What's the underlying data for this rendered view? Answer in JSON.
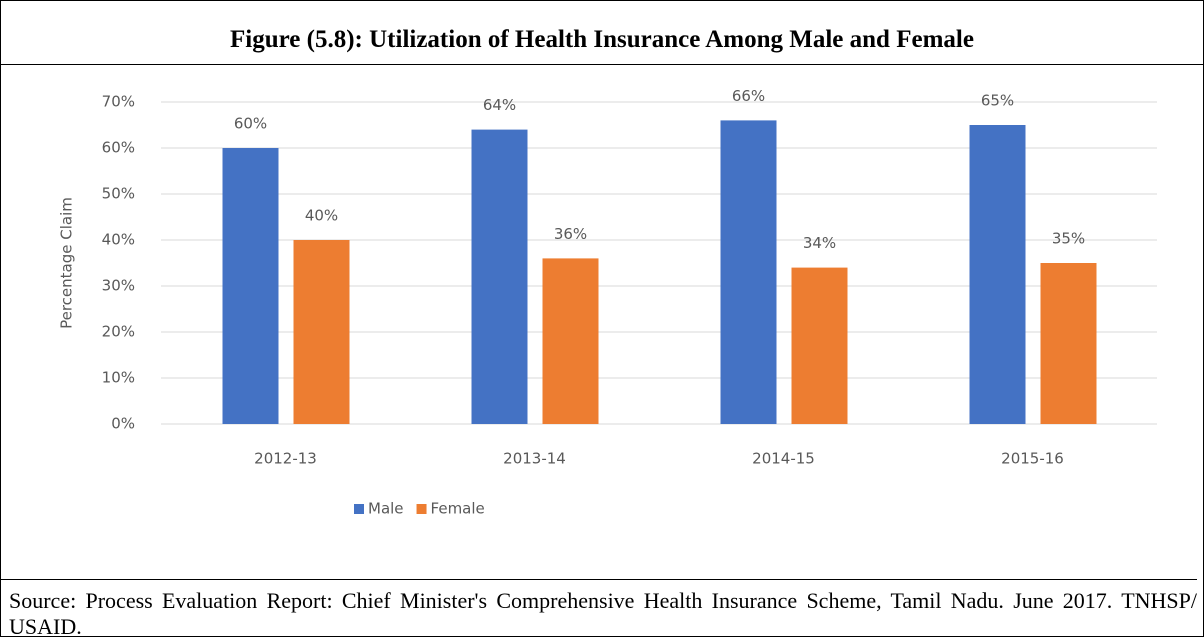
{
  "chart_data": {
    "type": "bar",
    "title": "Figure (5.8): Utilization of Health Insurance Among Male and Female",
    "categories": [
      "2012-13",
      "2013-14",
      "2014-15",
      "2015-16"
    ],
    "series": [
      {
        "name": "Male",
        "color": "#4472c4",
        "values": [
          60,
          64,
          66,
          65
        ],
        "value_labels": [
          "60%",
          "64%",
          "66%",
          "65%"
        ]
      },
      {
        "name": "Female",
        "color": "#ed7d31",
        "values": [
          40,
          36,
          34,
          35
        ],
        "value_labels": [
          "40%",
          "36%",
          "34%",
          "35%"
        ]
      }
    ],
    "y_label": "Percentage Claim",
    "ylim": [
      0,
      70
    ],
    "yticks": [
      {
        "value": 0,
        "label": "0%"
      },
      {
        "value": 10,
        "label": "10%"
      },
      {
        "value": 20,
        "label": "20%"
      },
      {
        "value": 30,
        "label": "30%"
      },
      {
        "value": 40,
        "label": "40%"
      },
      {
        "value": 50,
        "label": "50%"
      },
      {
        "value": 60,
        "label": "60%"
      },
      {
        "value": 70,
        "label": "70%"
      }
    ],
    "grid": true,
    "legend": "bottom"
  },
  "source": "Source: Process Evaluation Report: Chief Minister's Comprehensive Health Insurance Scheme, Tamil Nadu. June 2017. TNHSP/ USAID."
}
